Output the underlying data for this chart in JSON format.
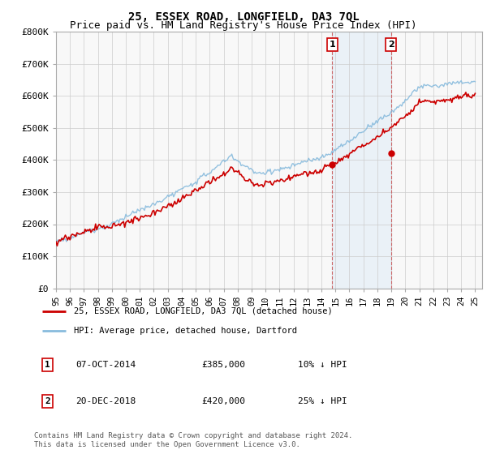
{
  "title": "25, ESSEX ROAD, LONGFIELD, DA3 7QL",
  "subtitle": "Price paid vs. HM Land Registry's House Price Index (HPI)",
  "ylim": [
    0,
    800000
  ],
  "yticks": [
    0,
    100000,
    200000,
    300000,
    400000,
    500000,
    600000,
    700000,
    800000
  ],
  "ytick_labels": [
    "£0",
    "£100K",
    "£200K",
    "£300K",
    "£400K",
    "£500K",
    "£600K",
    "£700K",
    "£800K"
  ],
  "background_color": "#ffffff",
  "plot_bg_color": "#f8f8f8",
  "grid_color": "#cccccc",
  "hpi_color": "#88bbdd",
  "price_color": "#cc0000",
  "shade_color": "#d6e8f7",
  "marker1_year": 2014.77,
  "marker2_year": 2018.97,
  "marker1_price": 385000,
  "marker2_price": 420000,
  "marker1_label": "1",
  "marker2_label": "2",
  "marker1_date": "07-OCT-2014",
  "marker2_date": "20-DEC-2018",
  "marker1_hpi_diff": "10% ↓ HPI",
  "marker2_hpi_diff": "25% ↓ HPI",
  "legend_line1": "25, ESSEX ROAD, LONGFIELD, DA3 7QL (detached house)",
  "legend_line2": "HPI: Average price, detached house, Dartford",
  "footer": "Contains HM Land Registry data © Crown copyright and database right 2024.\nThis data is licensed under the Open Government Licence v3.0.",
  "title_fontsize": 10,
  "subtitle_fontsize": 9
}
